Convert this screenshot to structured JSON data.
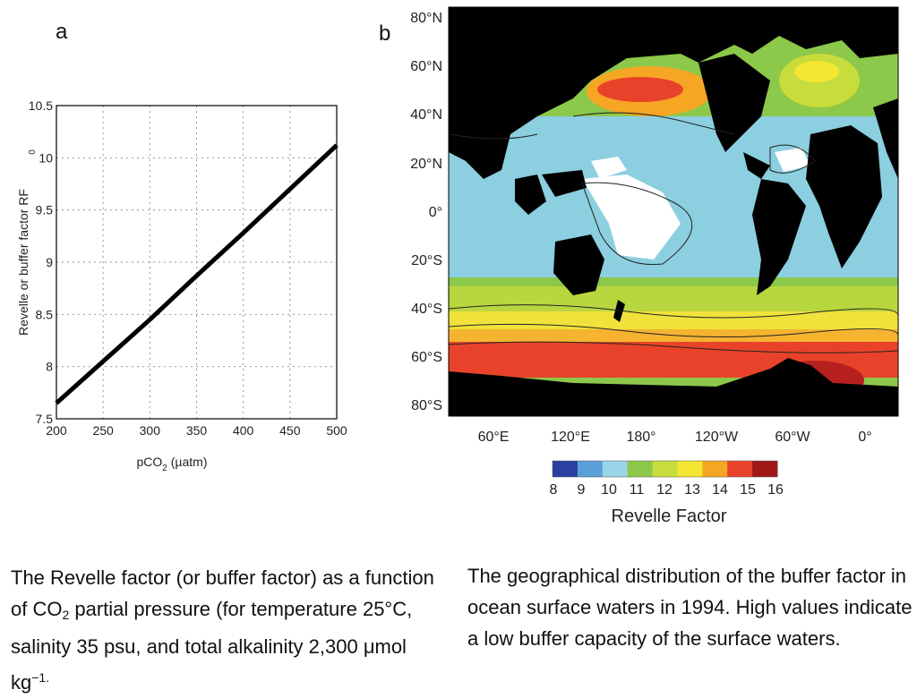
{
  "panel_a": {
    "letter": "a",
    "ylabel": "Revelle or buffer factor RF",
    "ylabel_sub": "0",
    "xlabel_main": "pCO",
    "xlabel_sub": "2",
    "xlabel_unit": "(µatm)"
  },
  "panel_b": {
    "letter": "b",
    "lat_labels": [
      "80°N",
      "60°N",
      "40°N",
      "20°N",
      "0°",
      "20°S",
      "40°S",
      "60°S",
      "80°S"
    ],
    "lon_labels": [
      "60°E",
      "120°E",
      "180°",
      "120°W",
      "60°W",
      "0°"
    ],
    "colorbar_ticks": [
      "8",
      "9",
      "10",
      "11",
      "12",
      "13",
      "14",
      "15",
      "16"
    ],
    "colorbar_title": "Revelle Factor",
    "colorbar_colors": [
      "#2a3fa0",
      "#5aa0d8",
      "#9ad4e8",
      "#8cc84a",
      "#c8dc3c",
      "#f4e632",
      "#f5a623",
      "#e8432a",
      "#a01818"
    ]
  },
  "caption_a": {
    "part1": "The Revelle factor (or buffer factor) as a function of CO",
    "sub": "2",
    "part2": " partial pressure (for temperature 25°C, salinity 35 psu, and total alkalinity 2,300 ",
    "mu": "μ",
    "part3": "mol kg",
    "sup": "−1.",
    "part4": ""
  },
  "caption_b": {
    "text": "The geographical distribution of the buffer factor in ocean surface waters in 1994. High values indicate a low buffer capacity of the surface waters."
  },
  "chart_data": [
    {
      "type": "line",
      "title": "",
      "xlabel": "pCO2 (µatm)",
      "ylabel": "Revelle or buffer factor RF0",
      "xlim": [
        200,
        500
      ],
      "ylim": [
        7.5,
        10.5
      ],
      "x_ticks": [
        "200",
        "250",
        "300",
        "350",
        "400",
        "450",
        "500"
      ],
      "y_ticks": [
        "7.5",
        "8",
        "8.5",
        "9",
        "9.5",
        "10",
        "10.5"
      ],
      "grid": true,
      "series": [
        {
          "x": [
            200,
            250,
            300,
            350,
            400,
            450,
            500
          ],
          "y": [
            7.65,
            8.05,
            8.45,
            8.87,
            9.28,
            9.7,
            10.12
          ]
        }
      ]
    },
    {
      "type": "heatmap",
      "title": "",
      "xlabel": "",
      "ylabel": "",
      "colorbar_label": "Revelle Factor",
      "colorbar_range": [
        8,
        16
      ]
    }
  ]
}
